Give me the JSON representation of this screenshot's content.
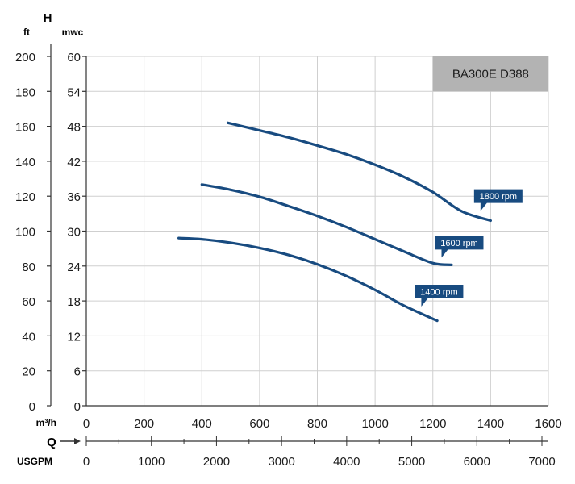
{
  "chart_data": {
    "type": "line",
    "title": "BA300E D388",
    "y_axis_letter": "H",
    "y_left_unit": "ft",
    "y_right_unit": "mwc",
    "x_unit": "m³/h",
    "x_letter": "Q",
    "x2_unit": "USGPM",
    "x_ticks": [
      "0",
      "200",
      "400",
      "600",
      "800",
      "1000",
      "1200",
      "1400",
      "1600"
    ],
    "x2_ticks": [
      "0",
      "1000",
      "2000",
      "3000",
      "4000",
      "5000",
      "6000",
      "7000"
    ],
    "y_mwc_ticks": [
      "0",
      "6",
      "12",
      "18",
      "24",
      "30",
      "36",
      "42",
      "48",
      "54",
      "60"
    ],
    "y_ft_ticks": [
      "0",
      "20",
      "40",
      "60",
      "80",
      "100",
      "120",
      "140",
      "160",
      "180",
      "200"
    ],
    "xlim": [
      0,
      1600
    ],
    "x2lim": [
      0,
      7000
    ],
    "ylim_mwc": [
      0,
      60
    ],
    "ylim_ft": [
      0,
      200
    ],
    "grid": true,
    "series": [
      {
        "name": "1800 rpm",
        "color": "#184b80",
        "x": [
          490,
          600,
          700,
          800,
          900,
          1000,
          1100,
          1200,
          1300,
          1400
        ],
        "y": [
          48.6,
          47.3,
          46.1,
          44.7,
          43.2,
          41.4,
          39.3,
          36.7,
          33.4,
          31.8
        ]
      },
      {
        "name": "1600 rpm",
        "color": "#184b80",
        "x": [
          400,
          500,
          600,
          700,
          800,
          900,
          1000,
          1100,
          1200,
          1265
        ],
        "y": [
          38.0,
          37.1,
          35.9,
          34.3,
          32.6,
          30.7,
          28.6,
          26.5,
          24.5,
          24.2
        ]
      },
      {
        "name": "1400 rpm",
        "color": "#184b80",
        "x": [
          320,
          400,
          500,
          600,
          700,
          800,
          900,
          1000,
          1100,
          1215
        ],
        "y": [
          28.8,
          28.6,
          28.0,
          27.1,
          25.9,
          24.3,
          22.3,
          19.9,
          17.2,
          14.6
        ]
      }
    ],
    "labels": [
      {
        "text": "1800 rpm",
        "series": 0,
        "anchor_x": 1365,
        "anchor_y": 34.0
      },
      {
        "text": "1600 rpm",
        "series": 1,
        "anchor_x": 1230,
        "anchor_y": 26.0
      },
      {
        "text": "1400 rpm",
        "series": 2,
        "anchor_x": 1160,
        "anchor_y": 17.6
      }
    ],
    "colors": {
      "curve": "#184b80",
      "label_bg": "#184b80",
      "label_text": "#ffffff",
      "title_box": "#b3b3b3",
      "grid": "#cfcfcf",
      "axis": "#333333"
    }
  }
}
